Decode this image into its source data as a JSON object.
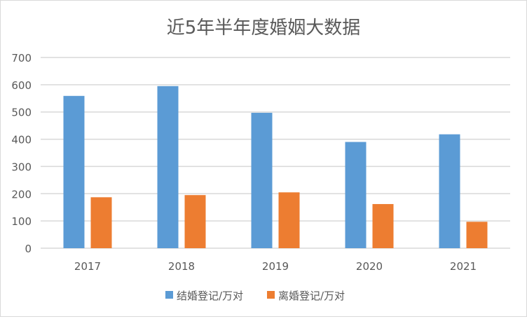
{
  "chart_data": {
    "type": "bar",
    "title": "近5年半年度婚姻大数据",
    "categories": [
      "2017",
      "2018",
      "2019",
      "2020",
      "2021"
    ],
    "series": [
      {
        "name": "结婚登记/万对",
        "color": "#5b9bd5",
        "values": [
          559,
          595,
          497,
          390,
          418
        ]
      },
      {
        "name": "离婚登记/万对",
        "color": "#ed7d31",
        "values": [
          187,
          195,
          205,
          162,
          97
        ]
      }
    ],
    "yticks": [
      "0",
      "100",
      "200",
      "300",
      "400",
      "500",
      "600",
      "700"
    ],
    "ylim": [
      0,
      700
    ],
    "xlabel": "",
    "ylabel": "",
    "grid": true,
    "legend": "bottom"
  }
}
